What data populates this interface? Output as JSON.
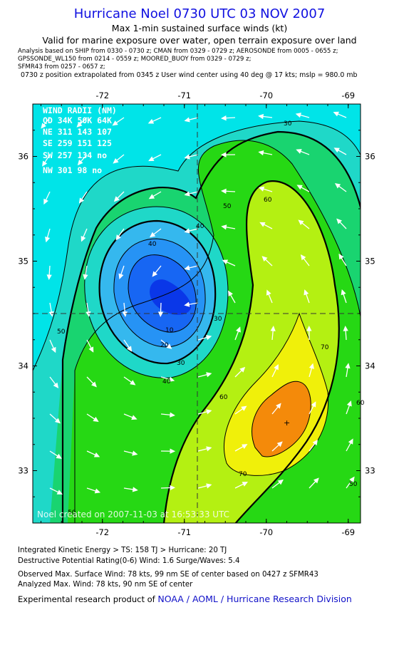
{
  "header": {
    "title": "Hurricane Noel 0730 UTC 03 NOV 2007",
    "subtitle1": "Max 1-min sustained surface winds (kt)",
    "subtitle2": "Valid for marine exposure over water, open terrain exposure over land",
    "analysis_line1": "Analysis based on   SHIP from 0330 - 0730 z;  CMAN from 0329 - 0729 z;  AEROSONDE from 0005 - 0655 z;",
    "analysis_line2": "GPSSONDE_WL150 from 0214 - 0559 z;  MOORED_BUOY from 0329 - 0729 z;",
    "analysis_line3": "SFMR43 from 0257 - 0657 z;",
    "position_line": "0730 z position extrapolated from 0345 z User wind center using 40 deg @ 17 kts; mslp = 980.0 mb"
  },
  "map": {
    "lon_ticks": [
      "-72",
      "-71",
      "-70",
      "-69"
    ],
    "lat_ticks": [
      "36",
      "35",
      "34",
      "33"
    ],
    "lon_range": [
      -72.85,
      -68.85
    ],
    "lat_range": [
      32.5,
      36.5
    ],
    "center": {
      "lon": -70.9,
      "lat": 34.47
    },
    "contour_labels": [
      "10",
      "20",
      "30",
      "40",
      "50",
      "60",
      "70",
      "30",
      "40",
      "50",
      "60",
      "70",
      "50",
      "60",
      "50",
      "40",
      "30"
    ],
    "wind_radii": {
      "heading": "WIND RADII (NM)",
      "rows": [
        "QD  34K  50K  64K",
        "NE  311  143  107",
        "SE  259  151  125",
        "SW  257  134   no",
        "NW  301   98   no"
      ]
    },
    "watermark": "Noel   created on 2007-11-03 at 16:53:33 UTC",
    "colors": {
      "lt10": "#0a37e8",
      "10": "#1766f3",
      "20": "#2693f5",
      "30": "#35b8ee",
      "40": "#1fd8c8",
      "50": "#19d470",
      "60": "#26d814",
      "70": "#b4f012",
      "80": "#f0f00a",
      "90": "#f48a0a",
      "ocean": "#00e4e8"
    }
  },
  "footer": {
    "ike": "Integrated Kinetic Energy > TS: 158 TJ   > Hurricane: 20 TJ",
    "dpr": "Destructive Potential Rating(0-6)   Wind: 1.6 Surge/Waves: 5.4",
    "obs": "Observed Max. Surface Wind: 78 kts, 99 nm SE of center based on 0427 z SFMR43",
    "ana": "Analyzed Max. Wind: 78 kts, 90 nm SE of center",
    "credit_prefix": "Experimental research product of ",
    "credit_link": "NOAA / AOML / Hurricane Research Division"
  }
}
